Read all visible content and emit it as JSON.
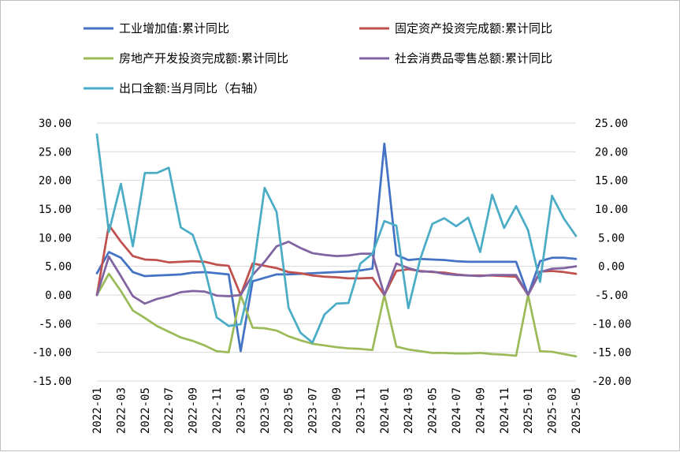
{
  "chart_data": {
    "type": "line",
    "x": [
      "2022-01",
      "2022-02",
      "2022-03",
      "2022-04",
      "2022-05",
      "2022-06",
      "2022-07",
      "2022-08",
      "2022-09",
      "2022-10",
      "2022-11",
      "2022-12",
      "2023-01",
      "2023-02",
      "2023-03",
      "2023-04",
      "2023-05",
      "2023-06",
      "2023-07",
      "2023-08",
      "2023-09",
      "2023-10",
      "2023-11",
      "2023-12",
      "2024-01",
      "2024-02",
      "2024-03",
      "2024-04",
      "2024-05",
      "2024-06",
      "2024-07",
      "2024-08",
      "2024-09",
      "2024-10",
      "2024-11",
      "2024-12",
      "2025-01",
      "2025-02",
      "2025-03",
      "2025-04",
      "2025-05"
    ],
    "x_tick_labels": [
      "2022-01",
      "2022-03",
      "2022-05",
      "2022-07",
      "2022-09",
      "2022-11",
      "2023-01",
      "2023-03",
      "2023-05",
      "2023-07",
      "2023-09",
      "2023-11",
      "2024-01",
      "2024-03",
      "2024-05",
      "2024-07",
      "2024-09",
      "2024-11",
      "2025-01",
      "2025-03",
      "2025-05"
    ],
    "y_left": {
      "ylim": [
        -15,
        30
      ],
      "ticks": [
        "-15.00",
        "-10.00",
        "-5.00",
        "0.00",
        "5.00",
        "10.00",
        "15.00",
        "20.00",
        "25.00",
        "30.00"
      ]
    },
    "y_right": {
      "ylim": [
        -20,
        25
      ],
      "ticks": [
        "-20.00",
        "-15.00",
        "-10.00",
        "-5.00",
        "0.00",
        "5.00",
        "10.00",
        "15.00",
        "20.00",
        "25.00"
      ]
    },
    "grid": true,
    "legend_position": "top",
    "series": [
      {
        "name": "工业增加值:累计同比",
        "color": "#4472c4",
        "axis": "left",
        "values": [
          3.8,
          7.5,
          6.5,
          4.0,
          3.3,
          3.4,
          3.5,
          3.6,
          3.9,
          4.0,
          3.8,
          3.6,
          -9.8,
          2.4,
          3.0,
          3.6,
          3.6,
          3.7,
          3.8,
          3.9,
          4.0,
          4.1,
          4.3,
          4.6,
          26.4,
          7.0,
          6.1,
          6.3,
          6.2,
          6.1,
          5.9,
          5.8,
          5.8,
          5.8,
          5.8,
          5.8,
          0.0,
          5.9,
          6.5,
          6.5,
          6.3
        ]
      },
      {
        "name": "固定资产投资完成额:累计同比",
        "color": "#c0504d",
        "axis": "left",
        "values": [
          0.0,
          12.2,
          9.3,
          6.8,
          6.2,
          6.1,
          5.7,
          5.8,
          5.9,
          5.8,
          5.3,
          5.1,
          0.0,
          5.5,
          5.1,
          4.7,
          4.0,
          3.8,
          3.4,
          3.2,
          3.1,
          2.9,
          2.9,
          3.0,
          0.0,
          4.2,
          4.5,
          4.2,
          4.0,
          3.9,
          3.6,
          3.4,
          3.4,
          3.4,
          3.3,
          3.2,
          0.0,
          4.1,
          4.2,
          4.0,
          3.7
        ]
      },
      {
        "name": "房地产开发投资完成额:累计同比",
        "color": "#9bbb59",
        "axis": "left",
        "values": [
          0.0,
          3.7,
          0.7,
          -2.7,
          -4.0,
          -5.4,
          -6.4,
          -7.4,
          -8.0,
          -8.8,
          -9.8,
          -10.0,
          0.0,
          -5.7,
          -5.8,
          -6.2,
          -7.2,
          -7.9,
          -8.5,
          -8.8,
          -9.1,
          -9.3,
          -9.4,
          -9.6,
          0.0,
          -9.0,
          -9.5,
          -9.8,
          -10.1,
          -10.1,
          -10.2,
          -10.2,
          -10.1,
          -10.3,
          -10.4,
          -10.6,
          0.0,
          -9.8,
          -9.9,
          -10.3,
          -10.7
        ]
      },
      {
        "name": "社会消费品零售总额:累计同比",
        "color": "#8064a2",
        "axis": "left",
        "values": [
          0.0,
          6.7,
          3.3,
          -0.2,
          -1.5,
          -0.7,
          -0.2,
          0.5,
          0.7,
          0.6,
          -0.1,
          -0.2,
          0.0,
          3.5,
          5.8,
          8.5,
          9.3,
          8.2,
          7.3,
          7.0,
          6.8,
          6.9,
          7.2,
          7.2,
          0.0,
          5.5,
          4.7,
          4.1,
          4.1,
          3.7,
          3.5,
          3.4,
          3.3,
          3.5,
          3.5,
          3.5,
          0.0,
          4.0,
          4.6,
          4.7,
          5.0
        ]
      },
      {
        "name": "出口金额:当月同比（右轴）",
        "color": "#4bacc6",
        "axis": "right",
        "values": [
          23.0,
          6.0,
          14.4,
          3.5,
          16.3,
          16.3,
          17.2,
          6.8,
          5.5,
          -0.4,
          -8.9,
          -10.4,
          -10.1,
          -1.3,
          13.7,
          9.5,
          -7.2,
          -11.6,
          -13.3,
          -8.4,
          -6.5,
          -6.4,
          0.5,
          2.2,
          7.9,
          7.1,
          -7.3,
          1.3,
          7.4,
          8.4,
          7.0,
          8.5,
          2.5,
          12.5,
          6.7,
          10.5,
          6.3,
          -2.7,
          12.3,
          8.3,
          5.3
        ]
      }
    ]
  }
}
